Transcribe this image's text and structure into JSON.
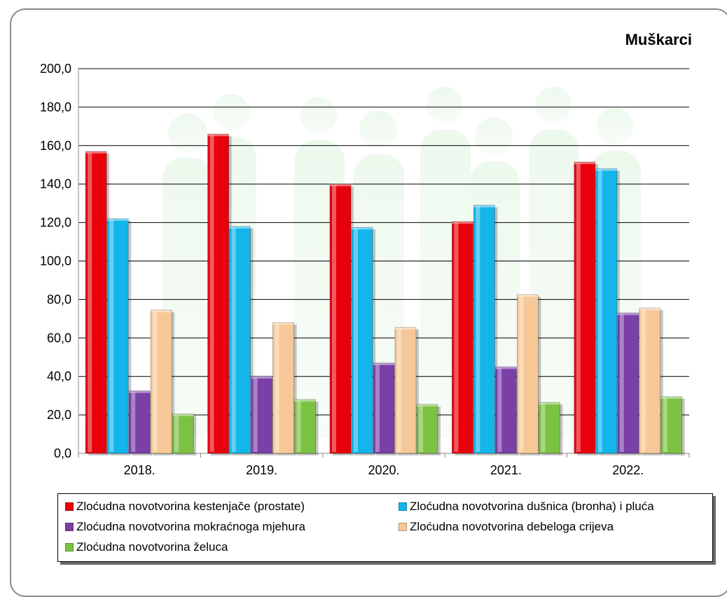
{
  "chart_data": {
    "type": "bar",
    "title": "Muškarci",
    "categories": [
      "2018.",
      "2019.",
      "2020.",
      "2021.",
      "2022."
    ],
    "ylim": [
      0,
      200
    ],
    "yticks": [
      "0,0",
      "20,0",
      "40,0",
      "60,0",
      "80,0",
      "100,0",
      "120,0",
      "140,0",
      "160,0",
      "180,0",
      "200,0"
    ],
    "grid": true,
    "legend_position": "bottom",
    "series": [
      {
        "name": "Zloćudna novotvorina kestenjače (prostate)",
        "color": "#e8000b",
        "values": [
          157.0,
          166.0,
          140.0,
          120.5,
          151.5
        ]
      },
      {
        "name": "Zloćudna novotvorina dušnica (bronha) i pluća",
        "color": "#13b5ea",
        "values": [
          122.0,
          118.0,
          117.5,
          129.0,
          148.0
        ]
      },
      {
        "name": "Zloćudna novotvorina mokraćnoga mjehura",
        "color": "#7b3fa8",
        "values": [
          32.5,
          40.0,
          47.0,
          45.0,
          73.0
        ]
      },
      {
        "name": "Zloćudna novotvorina debeloga crijeva",
        "color": "#f7c897",
        "values": [
          74.5,
          68.0,
          65.5,
          82.5,
          75.5
        ]
      },
      {
        "name": "Zloćudna novotvorina želuca",
        "color": "#7cc242",
        "values": [
          20.5,
          28.0,
          25.5,
          26.5,
          29.5
        ]
      }
    ]
  }
}
